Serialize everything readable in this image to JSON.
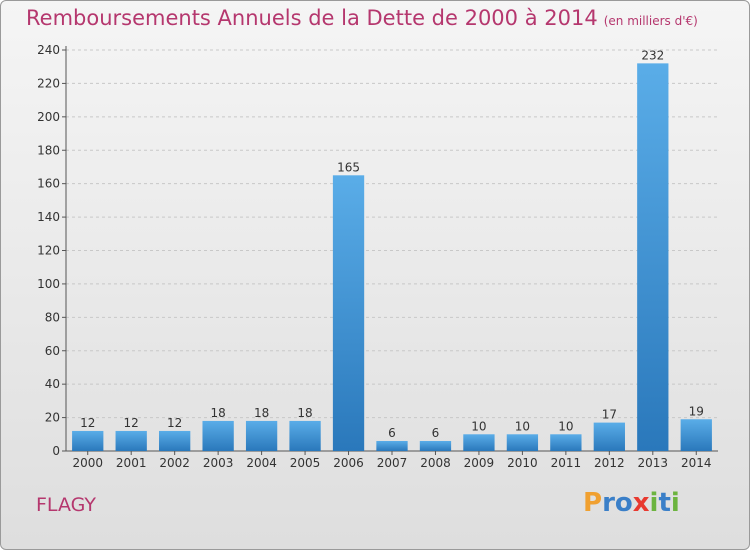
{
  "title": "Remboursements Annuels de la Dette de 2000 à 2014",
  "unit_note": "(en milliers d'€)",
  "commune": "FLAGY",
  "logo": {
    "letters": [
      "P",
      "r",
      "o",
      "x",
      "i",
      "t",
      "i"
    ],
    "colors": [
      "#f0a030",
      "#3a7fc8",
      "#3a7fc8",
      "#e8392f",
      "#6cb43f",
      "#3a7fc8",
      "#6cb43f"
    ]
  },
  "chart_data": {
    "type": "bar",
    "categories": [
      "2000",
      "2001",
      "2002",
      "2003",
      "2004",
      "2005",
      "2006",
      "2007",
      "2008",
      "2009",
      "2010",
      "2011",
      "2012",
      "2013",
      "2014"
    ],
    "values": [
      12,
      12,
      12,
      18,
      18,
      18,
      165,
      6,
      6,
      10,
      10,
      10,
      17,
      232,
      19
    ],
    "ylim": [
      0,
      240
    ],
    "yticks": [
      0,
      20,
      40,
      60,
      80,
      100,
      120,
      140,
      160,
      180,
      200,
      220,
      240
    ],
    "grid": true,
    "bar_color_top": "#5aade8",
    "bar_color_bottom": "#2a78bb"
  }
}
